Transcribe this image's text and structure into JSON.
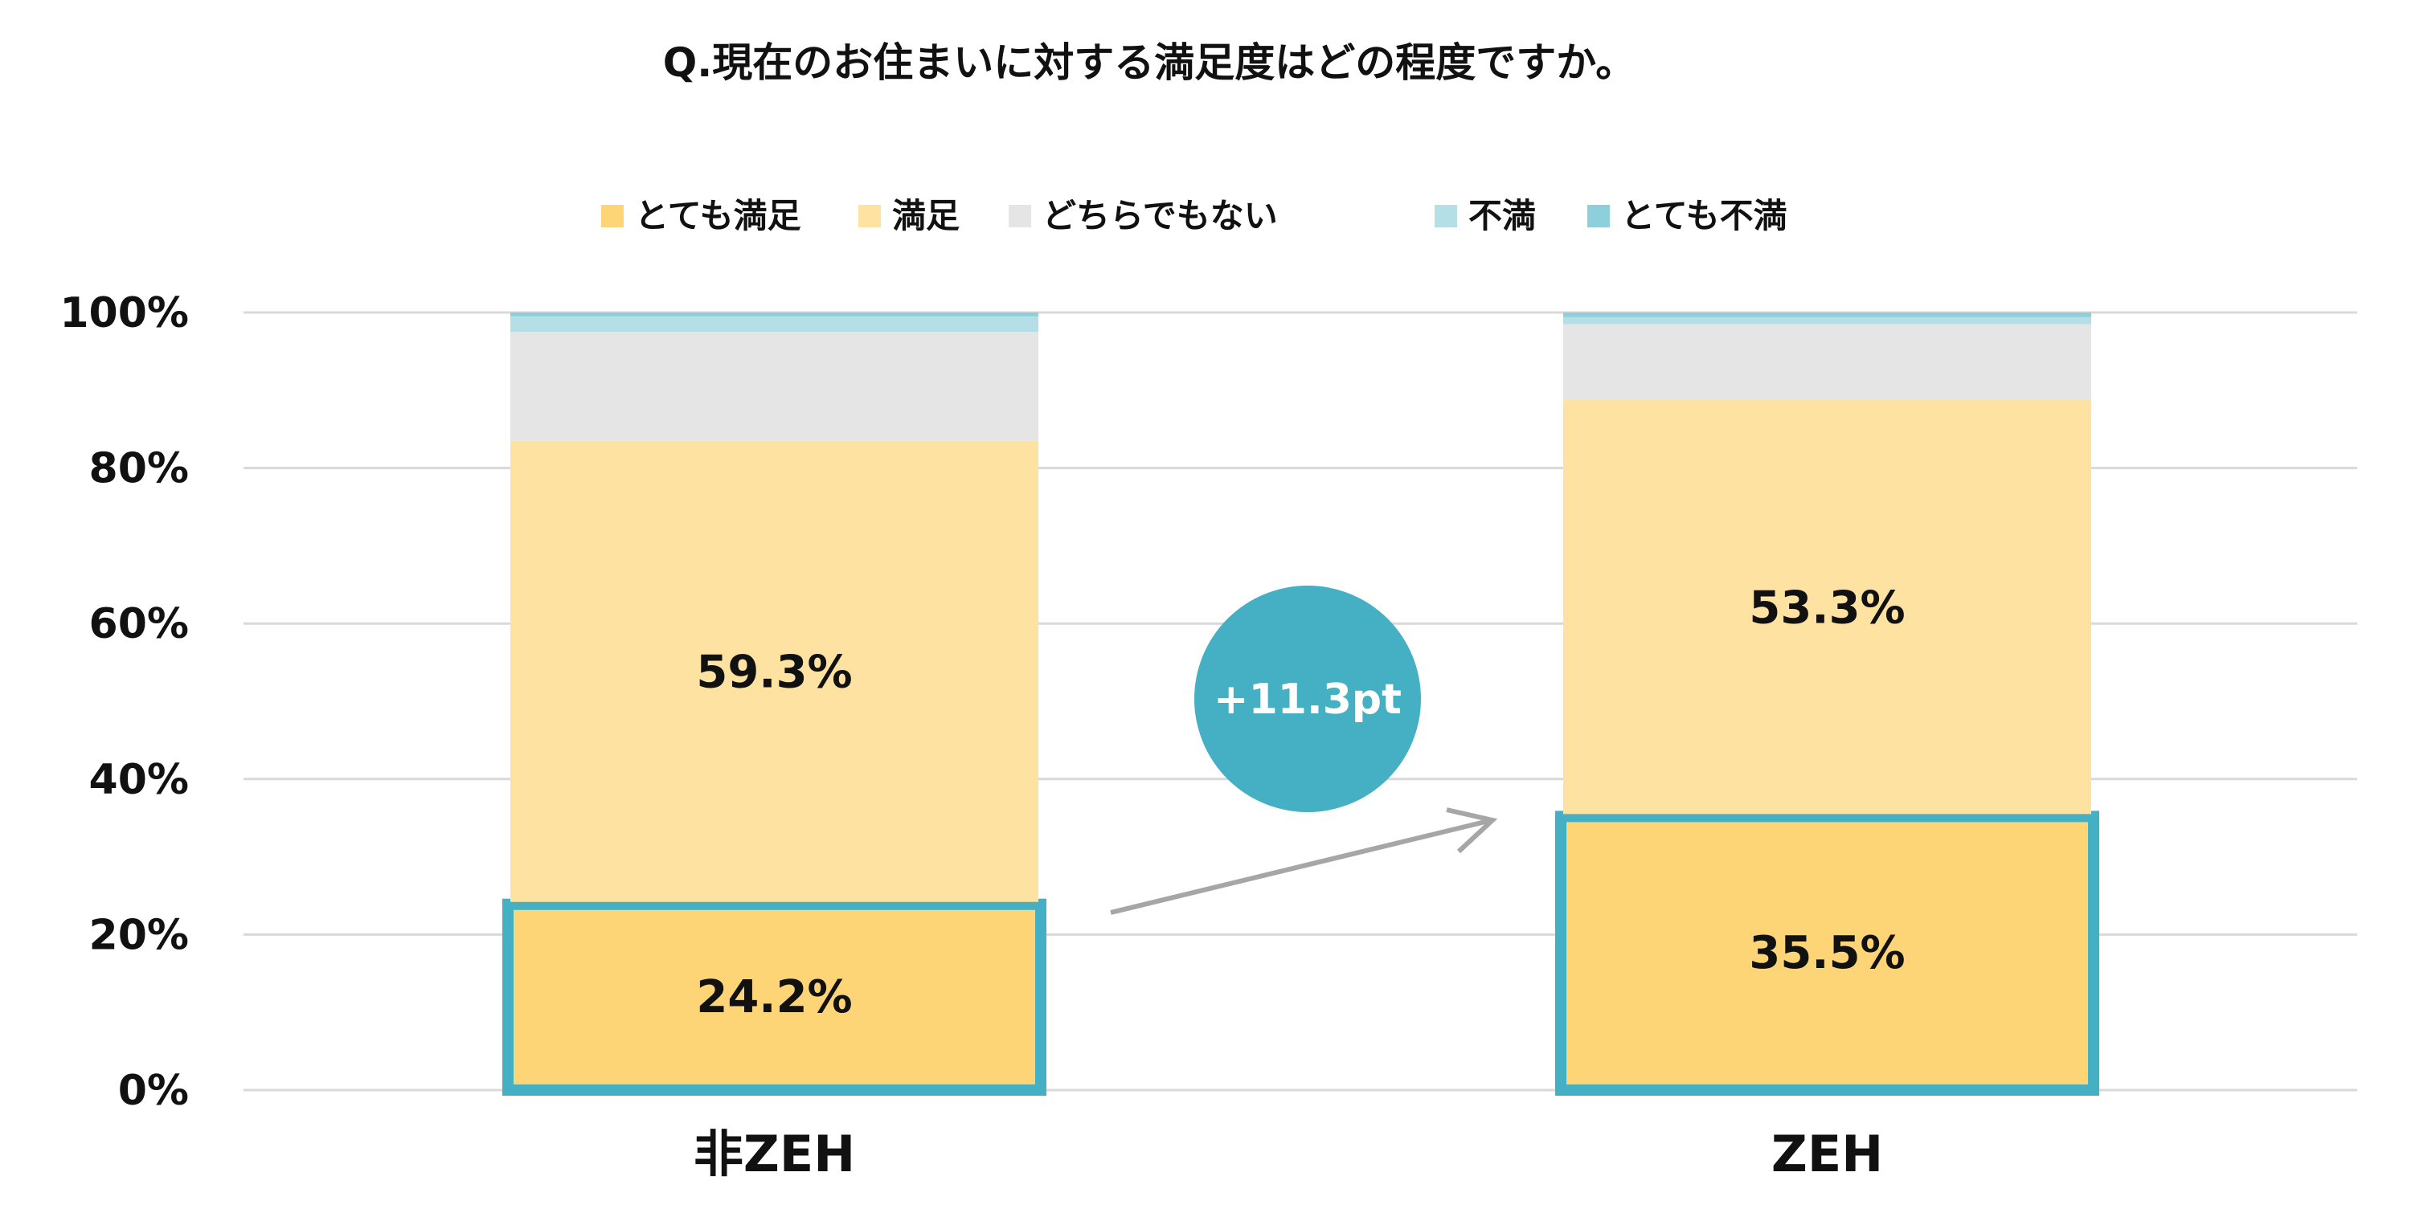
{
  "chart_data": {
    "type": "bar",
    "stacked": true,
    "title": "Q.現在のお住まいに対する満足度はどの程度ですか。",
    "categories": [
      "非ZEH",
      "ZEH"
    ],
    "series": [
      {
        "name": "とても満足",
        "color": "#FDD576",
        "values": [
          24.2,
          35.5
        ]
      },
      {
        "name": "満足",
        "color": "#FDE2A2",
        "values": [
          59.3,
          53.3
        ]
      },
      {
        "name": "どちらでもない",
        "color": "#E5E5E5",
        "values": [
          14.0,
          9.7
        ]
      },
      {
        "name": "不満",
        "color": "#B4DFE6",
        "values": [
          2.0,
          0.9
        ]
      },
      {
        "name": "とても不満",
        "color": "#8ECFDC",
        "values": [
          0.5,
          0.6
        ]
      }
    ],
    "data_labels": [
      [
        "24.2%",
        "59.3%"
      ],
      [
        "35.5%",
        "53.3%"
      ]
    ],
    "y_ticks": [
      "0%",
      "20%",
      "40%",
      "60%",
      "80%",
      "100%"
    ],
    "ylim": [
      0,
      100
    ],
    "grid": true,
    "legend": "top",
    "annotation": {
      "text": "+11.3pt",
      "color": "#45B0C4"
    },
    "highlight_color": "#45B0C4"
  }
}
